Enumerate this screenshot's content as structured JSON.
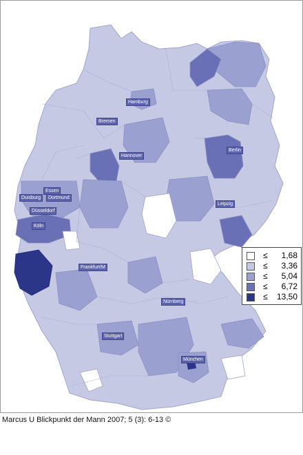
{
  "colors": {
    "c1": "#ffffff",
    "c2": "#c5c9e3",
    "c3": "#9aa0cf",
    "c4": "#6a70b5",
    "c5": "#2c3688",
    "border": "#9aa0cc"
  },
  "cities": [
    {
      "key": "hamburg",
      "label": "Hamburg"
    },
    {
      "key": "bremen",
      "label": "Bremen"
    },
    {
      "key": "hannover",
      "label": "Hannover"
    },
    {
      "key": "berlin",
      "label": "Berlin"
    },
    {
      "key": "essen",
      "label": "Essen"
    },
    {
      "key": "duisburg",
      "label": "Duisburg"
    },
    {
      "key": "dortmund",
      "label": "Dortmund"
    },
    {
      "key": "duesseldorf",
      "label": "Düsseldorf"
    },
    {
      "key": "koeln",
      "label": "Köln"
    },
    {
      "key": "leipzig",
      "label": "Leipzig"
    },
    {
      "key": "frankfurt",
      "label": "Frankfurt/M"
    },
    {
      "key": "nuernberg",
      "label": "Nürnberg"
    },
    {
      "key": "stuttgart",
      "label": "Stuttgart"
    },
    {
      "key": "muenchen",
      "label": "München"
    }
  ],
  "legend": [
    {
      "symbol": "≤",
      "value": "1,68"
    },
    {
      "symbol": "≤",
      "value": "3,36"
    },
    {
      "symbol": "≤",
      "value": "5,04"
    },
    {
      "symbol": "≤",
      "value": "6,72"
    },
    {
      "symbol": "≤",
      "value": "13,50"
    }
  ],
  "source": "Marcus U Blickpunkt der Mann 2007; 5 (3): 6-13 ©"
}
